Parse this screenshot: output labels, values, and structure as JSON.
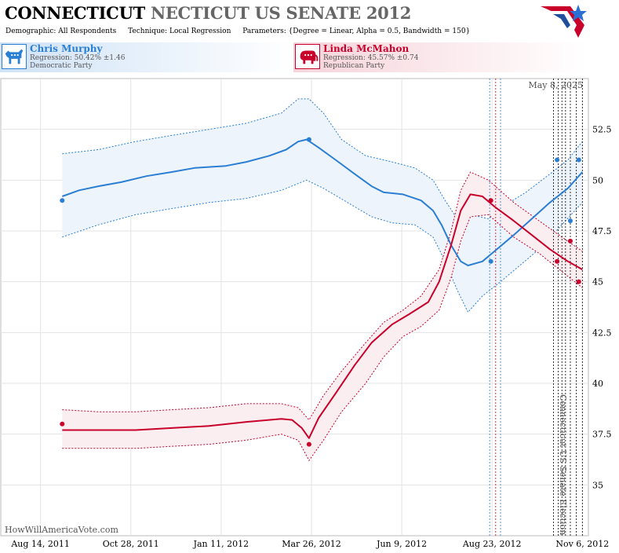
{
  "header": {
    "title_part1": "CONNECTICUT",
    "title_part2": "NECTICUT US SENATE 2012",
    "demographic": "Demographic: All Respondents",
    "technique": "Technique: Local Regression",
    "parameters": "Parameters: {Degree = Linear, Alpha = 0.5, Bandwidth = 150}"
  },
  "candidates": [
    {
      "name": "Chris Murphy",
      "regression": "Regression: 50.42% ±1.46",
      "party": "Democratic Party",
      "color": "#2a7fd4",
      "icon": "donkey-icon"
    },
    {
      "name": "Linda McMahon",
      "regression": "Regression: 45.57% ±0.74",
      "party": "Republican Party",
      "color": "#c8002a",
      "icon": "elephant-icon"
    }
  ],
  "chart_data": {
    "type": "line",
    "date_annotation": "May 8, 2025",
    "event_label": "Connecticut US Senate Election",
    "watermark": "HowWillAmericaVote.com",
    "x_ticks": [
      "Aug 14, 2011",
      "Oct 28, 2011",
      "Jan 11, 2012",
      "Mar 26, 2012",
      "Jun 9, 2012",
      "Aug 23, 2012",
      "Nov 6, 2012"
    ],
    "x_tick_dates": [
      "2011-08-14",
      "2011-10-28",
      "2012-01-11",
      "2012-03-26",
      "2012-06-09",
      "2012-08-23",
      "2012-11-06"
    ],
    "y_ticks": [
      "35",
      "37.5",
      "40",
      "42.5",
      "45",
      "47.5",
      "50",
      "52.5"
    ],
    "ylim": [
      32.5,
      55
    ],
    "xlim": [
      "2011-07-12",
      "2012-11-11"
    ],
    "poll_lines": [
      {
        "date": "2012-08-21",
        "color": "#2a7fd4"
      },
      {
        "date": "2012-08-26",
        "color": "#c8002a"
      },
      {
        "date": "2012-08-30",
        "color": "#2a7fd4"
      },
      {
        "date": "2012-10-13",
        "color": "#000000"
      },
      {
        "date": "2012-10-17",
        "color": "#000000"
      },
      {
        "date": "2012-10-20",
        "color": "#000000"
      },
      {
        "date": "2012-10-23",
        "color": "#000000"
      },
      {
        "date": "2012-10-27",
        "color": "#000000"
      },
      {
        "date": "2012-11-01",
        "color": "#000000"
      },
      {
        "date": "2012-11-06",
        "color": "#000000"
      }
    ],
    "series": [
      {
        "name": "Chris Murphy",
        "color": "#2a7fd4",
        "fill": "#eef4fb",
        "line": [
          [
            "2011-09-01",
            49.2
          ],
          [
            "2011-09-15",
            49.5
          ],
          [
            "2011-10-01",
            49.7
          ],
          [
            "2011-10-20",
            49.9
          ],
          [
            "2011-11-10",
            50.2
          ],
          [
            "2011-12-01",
            50.4
          ],
          [
            "2011-12-20",
            50.6
          ],
          [
            "2012-01-15",
            50.7
          ],
          [
            "2012-02-01",
            50.9
          ],
          [
            "2012-02-20",
            51.2
          ],
          [
            "2012-03-05",
            51.5
          ],
          [
            "2012-03-15",
            51.9
          ],
          [
            "2012-03-22",
            52.0
          ],
          [
            "2012-04-01",
            51.6
          ],
          [
            "2012-04-15",
            51.0
          ],
          [
            "2012-05-01",
            50.3
          ],
          [
            "2012-05-15",
            49.7
          ],
          [
            "2012-05-25",
            49.4
          ],
          [
            "2012-06-10",
            49.3
          ],
          [
            "2012-06-25",
            49.0
          ],
          [
            "2012-07-05",
            48.5
          ],
          [
            "2012-07-12",
            47.8
          ],
          [
            "2012-07-20",
            46.8
          ],
          [
            "2012-07-28",
            46.0
          ],
          [
            "2012-08-03",
            45.8
          ],
          [
            "2012-08-15",
            46.0
          ],
          [
            "2012-08-25",
            46.5
          ],
          [
            "2012-09-10",
            47.3
          ],
          [
            "2012-09-25",
            48.1
          ],
          [
            "2012-10-10",
            48.9
          ],
          [
            "2012-10-25",
            49.6
          ],
          [
            "2012-11-06",
            50.4
          ]
        ],
        "upper": [
          [
            "2011-09-01",
            51.3
          ],
          [
            "2011-10-01",
            51.5
          ],
          [
            "2011-11-01",
            51.9
          ],
          [
            "2011-12-01",
            52.2
          ],
          [
            "2012-01-01",
            52.5
          ],
          [
            "2012-02-01",
            52.8
          ],
          [
            "2012-03-01",
            53.3
          ],
          [
            "2012-03-15",
            54.0
          ],
          [
            "2012-03-24",
            54.0
          ],
          [
            "2012-04-05",
            53.3
          ],
          [
            "2012-04-20",
            52.0
          ],
          [
            "2012-05-10",
            51.2
          ],
          [
            "2012-06-01",
            50.9
          ],
          [
            "2012-06-20",
            50.6
          ],
          [
            "2012-07-05",
            50.0
          ],
          [
            "2012-07-15",
            49.0
          ],
          [
            "2012-07-25",
            48.1
          ],
          [
            "2012-08-05",
            48.3
          ],
          [
            "2012-08-20",
            48.1
          ],
          [
            "2012-09-01",
            48.7
          ],
          [
            "2012-09-20",
            49.4
          ],
          [
            "2012-10-10",
            50.3
          ],
          [
            "2012-10-25",
            51.0
          ],
          [
            "2012-11-06",
            51.9
          ]
        ],
        "lower": [
          [
            "2011-09-01",
            47.2
          ],
          [
            "2011-10-01",
            47.8
          ],
          [
            "2011-11-01",
            48.3
          ],
          [
            "2011-12-01",
            48.6
          ],
          [
            "2012-01-01",
            48.9
          ],
          [
            "2012-02-01",
            49.1
          ],
          [
            "2012-03-01",
            49.5
          ],
          [
            "2012-03-22",
            50.0
          ],
          [
            "2012-04-05",
            49.6
          ],
          [
            "2012-04-25",
            48.9
          ],
          [
            "2012-05-15",
            48.2
          ],
          [
            "2012-06-01",
            47.9
          ],
          [
            "2012-06-20",
            47.8
          ],
          [
            "2012-07-05",
            47.2
          ],
          [
            "2012-07-15",
            46.0
          ],
          [
            "2012-07-25",
            44.6
          ],
          [
            "2012-08-03",
            43.5
          ],
          [
            "2012-08-15",
            44.3
          ],
          [
            "2012-08-30",
            45.0
          ],
          [
            "2012-09-15",
            45.8
          ],
          [
            "2012-10-01",
            46.6
          ],
          [
            "2012-10-20",
            47.8
          ],
          [
            "2012-11-06",
            48.9
          ]
        ],
        "points": [
          [
            "2011-09-01",
            49
          ],
          [
            "2012-03-24",
            52
          ],
          [
            "2012-08-22",
            46
          ],
          [
            "2012-10-16",
            51
          ],
          [
            "2012-10-27",
            48
          ],
          [
            "2012-11-03",
            51
          ]
        ]
      },
      {
        "name": "Linda McMahon",
        "color": "#c8002a",
        "fill": "#fbeef1",
        "line": [
          [
            "2011-09-01",
            37.7
          ],
          [
            "2011-10-01",
            37.7
          ],
          [
            "2011-11-01",
            37.7
          ],
          [
            "2011-12-01",
            37.8
          ],
          [
            "2012-01-01",
            37.9
          ],
          [
            "2012-02-01",
            38.1
          ],
          [
            "2012-03-01",
            38.25
          ],
          [
            "2012-03-10",
            38.2
          ],
          [
            "2012-03-18",
            37.8
          ],
          [
            "2012-03-24",
            37.3
          ],
          [
            "2012-04-01",
            38.3
          ],
          [
            "2012-04-15",
            39.5
          ],
          [
            "2012-05-01",
            40.9
          ],
          [
            "2012-05-15",
            42.0
          ],
          [
            "2012-06-01",
            42.9
          ],
          [
            "2012-06-15",
            43.4
          ],
          [
            "2012-07-01",
            44.0
          ],
          [
            "2012-07-10",
            45.0
          ],
          [
            "2012-07-20",
            46.8
          ],
          [
            "2012-07-28",
            48.5
          ],
          [
            "2012-08-05",
            49.3
          ],
          [
            "2012-08-15",
            49.2
          ],
          [
            "2012-08-25",
            48.7
          ],
          [
            "2012-09-10",
            48.0
          ],
          [
            "2012-09-25",
            47.3
          ],
          [
            "2012-10-10",
            46.6
          ],
          [
            "2012-10-25",
            46.0
          ],
          [
            "2012-11-06",
            45.6
          ]
        ],
        "upper": [
          [
            "2011-09-01",
            38.7
          ],
          [
            "2011-10-01",
            38.6
          ],
          [
            "2011-11-01",
            38.6
          ],
          [
            "2011-12-01",
            38.7
          ],
          [
            "2012-01-01",
            38.8
          ],
          [
            "2012-02-01",
            39.0
          ],
          [
            "2012-03-01",
            39.0
          ],
          [
            "2012-03-15",
            38.8
          ],
          [
            "2012-03-24",
            38.2
          ],
          [
            "2012-04-05",
            39.4
          ],
          [
            "2012-04-20",
            40.6
          ],
          [
            "2012-05-10",
            42.0
          ],
          [
            "2012-05-25",
            43.0
          ],
          [
            "2012-06-10",
            43.6
          ],
          [
            "2012-06-25",
            44.3
          ],
          [
            "2012-07-10",
            45.6
          ],
          [
            "2012-07-20",
            47.5
          ],
          [
            "2012-07-28",
            49.5
          ],
          [
            "2012-08-05",
            50.4
          ],
          [
            "2012-08-20",
            50.0
          ],
          [
            "2012-09-10",
            48.9
          ],
          [
            "2012-10-01",
            48.0
          ],
          [
            "2012-10-20",
            47.2
          ],
          [
            "2012-11-06",
            46.5
          ]
        ],
        "lower": [
          [
            "2011-09-01",
            36.8
          ],
          [
            "2011-10-01",
            36.8
          ],
          [
            "2011-11-01",
            36.8
          ],
          [
            "2011-12-01",
            36.9
          ],
          [
            "2012-01-01",
            37.0
          ],
          [
            "2012-02-01",
            37.2
          ],
          [
            "2012-03-01",
            37.5
          ],
          [
            "2012-03-15",
            37.2
          ],
          [
            "2012-03-24",
            36.2
          ],
          [
            "2012-04-05",
            37.2
          ],
          [
            "2012-04-20",
            38.6
          ],
          [
            "2012-05-10",
            40.0
          ],
          [
            "2012-05-25",
            41.3
          ],
          [
            "2012-06-10",
            42.3
          ],
          [
            "2012-06-25",
            42.8
          ],
          [
            "2012-07-10",
            43.6
          ],
          [
            "2012-07-20",
            45.2
          ],
          [
            "2012-07-28",
            47.0
          ],
          [
            "2012-08-05",
            48.2
          ],
          [
            "2012-08-20",
            48.3
          ],
          [
            "2012-09-10",
            47.2
          ],
          [
            "2012-10-01",
            46.4
          ],
          [
            "2012-10-20",
            45.5
          ],
          [
            "2012-11-06",
            44.7
          ]
        ],
        "points": [
          [
            "2011-09-01",
            38
          ],
          [
            "2012-03-24",
            37
          ],
          [
            "2012-08-22",
            49
          ],
          [
            "2012-10-16",
            46
          ],
          [
            "2012-10-27",
            47
          ],
          [
            "2012-11-03",
            45
          ]
        ]
      }
    ]
  }
}
